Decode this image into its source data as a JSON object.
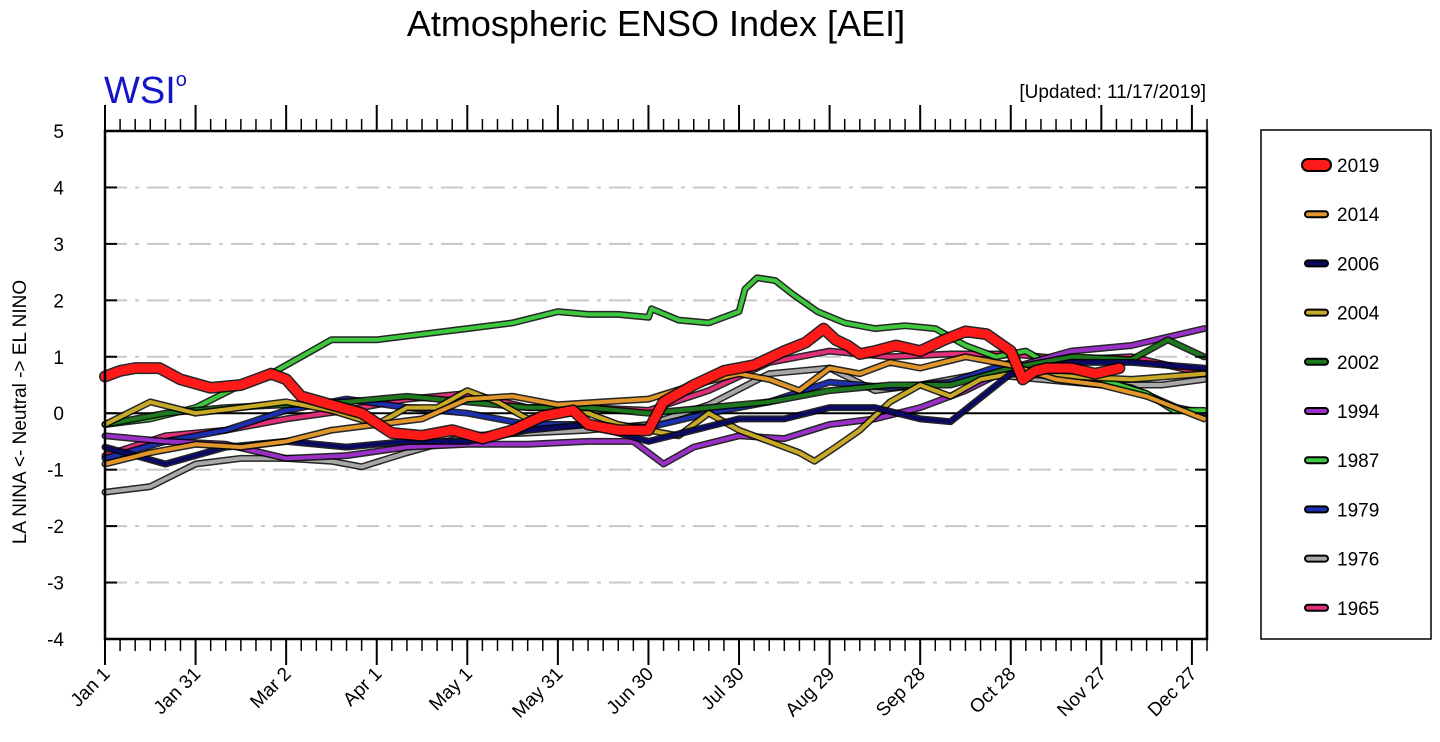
{
  "chart_data": {
    "type": "line",
    "title": "Atmospheric ENSO Index [AEI]",
    "brand": "WSI",
    "brand_superscript": "o",
    "updated": "[Updated: 11/17/2019]",
    "ylabel": "LA NINA <- Neutral -> EL NINO",
    "ylim": [
      -4,
      5
    ],
    "xlim": [
      0,
      365
    ],
    "yticks": [
      5,
      4,
      3,
      2,
      1,
      0,
      -1,
      -2,
      -3,
      -4
    ],
    "xticks": [
      {
        "day": 0,
        "label": "Jan 1"
      },
      {
        "day": 30,
        "label": "Jan 31"
      },
      {
        "day": 60,
        "label": "Mar 2"
      },
      {
        "day": 90,
        "label": "Apr 1"
      },
      {
        "day": 120,
        "label": "May 1"
      },
      {
        "day": 150,
        "label": "May 31"
      },
      {
        "day": 180,
        "label": "Jun 30"
      },
      {
        "day": 210,
        "label": "Jul 30"
      },
      {
        "day": 240,
        "label": "Aug 29"
      },
      {
        "day": 270,
        "label": "Sep 28"
      },
      {
        "day": 300,
        "label": "Oct 28"
      },
      {
        "day": 330,
        "label": "Nov 27"
      },
      {
        "day": 360,
        "label": "Dec 27"
      }
    ],
    "grid": true,
    "legend_position": "right",
    "series": [
      {
        "name": "1965",
        "color": "#e0307a",
        "width": 4,
        "x": [
          0,
          20,
          40,
          60,
          80,
          100,
          120,
          140,
          160,
          180,
          200,
          220,
          240,
          260,
          280,
          300,
          320,
          340,
          364
        ],
        "y": [
          -0.75,
          -0.4,
          -0.3,
          -0.1,
          0.05,
          0.25,
          0.35,
          0.1,
          0.1,
          0.05,
          0.4,
          0.9,
          1.1,
          1.0,
          1.05,
          1.05,
          0.95,
          1.0,
          0.7
        ]
      },
      {
        "name": "1976",
        "color": "#a8a8a8",
        "width": 4,
        "x": [
          0,
          15,
          30,
          45,
          60,
          75,
          85,
          100,
          120,
          140,
          160,
          180,
          200,
          220,
          240,
          255,
          270,
          290,
          310,
          330,
          350,
          364
        ],
        "y": [
          -1.4,
          -1.3,
          -0.9,
          -0.8,
          -0.8,
          -0.85,
          -0.95,
          -0.7,
          -0.4,
          -0.35,
          -0.3,
          -0.2,
          0.15,
          0.7,
          0.8,
          0.4,
          0.5,
          0.7,
          0.6,
          0.5,
          0.5,
          0.6
        ]
      },
      {
        "name": "1979",
        "color": "#1c2fb0",
        "width": 4,
        "x": [
          0,
          20,
          40,
          60,
          80,
          100,
          120,
          140,
          160,
          180,
          200,
          220,
          240,
          260,
          280,
          300,
          320,
          340,
          355,
          364
        ],
        "y": [
          -0.8,
          -0.5,
          -0.3,
          0.05,
          0.25,
          0.1,
          0.0,
          -0.2,
          -0.2,
          -0.25,
          0.0,
          0.2,
          0.55,
          0.45,
          0.55,
          0.9,
          0.65,
          0.45,
          0.1,
          0.0
        ]
      },
      {
        "name": "1987",
        "color": "#3ec83e",
        "width": 4,
        "x": [
          0,
          15,
          30,
          45,
          55,
          65,
          75,
          90,
          105,
          120,
          135,
          150,
          160,
          170,
          180,
          181,
          190,
          200,
          210,
          212,
          216,
          222,
          228,
          236,
          245,
          255,
          265,
          275,
          285,
          295,
          305,
          315,
          330,
          345,
          354,
          364
        ],
        "y": [
          -0.2,
          -0.1,
          0.1,
          0.5,
          0.7,
          1.0,
          1.3,
          1.3,
          1.4,
          1.5,
          1.6,
          1.8,
          1.75,
          1.75,
          1.7,
          1.85,
          1.65,
          1.6,
          1.8,
          2.2,
          2.4,
          2.35,
          2.1,
          1.8,
          1.6,
          1.5,
          1.55,
          1.5,
          1.2,
          1.0,
          1.1,
          0.8,
          0.6,
          0.35,
          0.05,
          0.05
        ]
      },
      {
        "name": "1994",
        "color": "#9b30c8",
        "width": 4,
        "x": [
          0,
          20,
          40,
          60,
          80,
          100,
          120,
          140,
          160,
          175,
          185,
          195,
          210,
          225,
          240,
          255,
          270,
          285,
          300,
          320,
          340,
          364
        ],
        "y": [
          -0.4,
          -0.5,
          -0.55,
          -0.8,
          -0.75,
          -0.6,
          -0.55,
          -0.55,
          -0.5,
          -0.5,
          -0.9,
          -0.6,
          -0.4,
          -0.45,
          -0.2,
          -0.1,
          0.1,
          0.4,
          0.8,
          1.1,
          1.2,
          1.5
        ]
      },
      {
        "name": "2002",
        "color": "#1e781e",
        "width": 4,
        "x": [
          0,
          20,
          40,
          60,
          80,
          100,
          120,
          140,
          160,
          180,
          200,
          220,
          240,
          260,
          280,
          300,
          320,
          340,
          352,
          364
        ],
        "y": [
          -0.2,
          0.0,
          0.1,
          0.15,
          0.2,
          0.3,
          0.2,
          0.1,
          0.1,
          0.0,
          0.1,
          0.2,
          0.4,
          0.5,
          0.5,
          0.8,
          1.0,
          0.95,
          1.3,
          1.0
        ]
      },
      {
        "name": "2004",
        "color": "#c8aa28",
        "width": 4,
        "x": [
          0,
          15,
          30,
          45,
          60,
          75,
          90,
          100,
          110,
          120,
          130,
          140,
          150,
          160,
          170,
          180,
          190,
          200,
          210,
          220,
          230,
          235,
          242,
          250,
          260,
          270,
          280,
          290,
          300,
          320,
          340,
          364
        ],
        "y": [
          -0.2,
          0.2,
          0.0,
          0.1,
          0.2,
          0.05,
          -0.2,
          0.1,
          0.1,
          0.4,
          0.2,
          -0.1,
          0.0,
          0.0,
          -0.2,
          -0.3,
          -0.4,
          0.0,
          -0.3,
          -0.5,
          -0.7,
          -0.85,
          -0.6,
          -0.3,
          0.2,
          0.5,
          0.3,
          0.6,
          0.7,
          0.65,
          0.6,
          0.7
        ]
      },
      {
        "name": "2006",
        "color": "#0a0a64",
        "width": 4,
        "x": [
          0,
          20,
          40,
          60,
          80,
          100,
          120,
          140,
          160,
          180,
          195,
          210,
          225,
          240,
          255,
          270,
          280,
          300,
          320,
          340,
          364
        ],
        "y": [
          -0.6,
          -0.9,
          -0.6,
          -0.5,
          -0.6,
          -0.5,
          -0.5,
          -0.3,
          -0.2,
          -0.5,
          -0.3,
          -0.1,
          -0.1,
          0.1,
          0.1,
          -0.1,
          -0.15,
          0.7,
          0.9,
          0.9,
          0.8
        ]
      },
      {
        "name": "2014",
        "color": "#e0962a",
        "width": 4,
        "x": [
          0,
          15,
          30,
          45,
          60,
          75,
          90,
          105,
          120,
          135,
          150,
          165,
          180,
          195,
          210,
          220,
          230,
          240,
          250,
          260,
          270,
          285,
          300,
          315,
          330,
          345,
          364
        ],
        "y": [
          -0.9,
          -0.7,
          -0.55,
          -0.6,
          -0.5,
          -0.3,
          -0.2,
          -0.1,
          0.25,
          0.3,
          0.15,
          0.2,
          0.25,
          0.5,
          0.7,
          0.6,
          0.4,
          0.8,
          0.7,
          0.9,
          0.8,
          1.0,
          0.85,
          0.6,
          0.5,
          0.3,
          -0.1
        ]
      },
      {
        "name": "2019",
        "color": "#ff1a1a",
        "width": 9,
        "x": [
          0,
          5,
          10,
          18,
          25,
          35,
          45,
          55,
          60,
          65,
          75,
          85,
          95,
          105,
          115,
          125,
          135,
          145,
          155,
          160,
          170,
          180,
          185,
          195,
          205,
          215,
          225,
          232,
          238,
          242,
          246,
          250,
          255,
          262,
          270,
          278,
          285,
          292,
          300,
          304,
          308,
          312,
          320,
          328,
          336
        ],
        "y": [
          0.65,
          0.75,
          0.8,
          0.8,
          0.6,
          0.45,
          0.5,
          0.7,
          0.6,
          0.3,
          0.15,
          0.0,
          -0.35,
          -0.4,
          -0.3,
          -0.45,
          -0.3,
          -0.05,
          0.05,
          -0.2,
          -0.3,
          -0.3,
          0.2,
          0.5,
          0.75,
          0.85,
          1.1,
          1.25,
          1.5,
          1.3,
          1.2,
          1.05,
          1.1,
          1.2,
          1.1,
          1.3,
          1.45,
          1.4,
          1.1,
          0.6,
          0.75,
          0.8,
          0.8,
          0.7,
          0.8
        ]
      }
    ],
    "legend_order": [
      "2019",
      "2014",
      "2006",
      "2004",
      "2002",
      "1994",
      "1987",
      "1979",
      "1976",
      "1965"
    ]
  }
}
